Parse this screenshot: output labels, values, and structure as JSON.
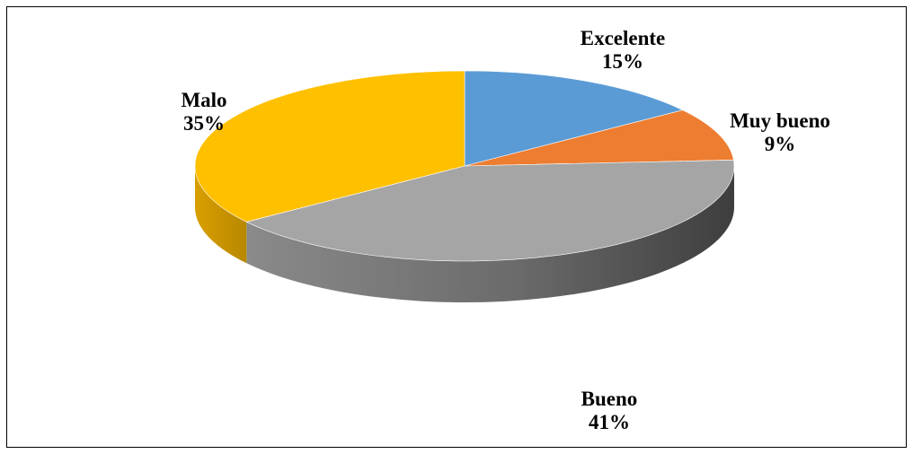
{
  "chart_data": {
    "type": "pie",
    "title": "",
    "style": "3d-pie",
    "legend": "none",
    "categories": [
      "Excelente",
      "Muy bueno",
      "Bueno",
      "Malo"
    ],
    "values": [
      15,
      9,
      41,
      35
    ],
    "value_labels": [
      "15%",
      "9%",
      "41%",
      "35%"
    ],
    "unit": "%",
    "colors": [
      "#5B9BD5",
      "#ED7D31",
      "#A5A5A5",
      "#FFC000"
    ]
  }
}
